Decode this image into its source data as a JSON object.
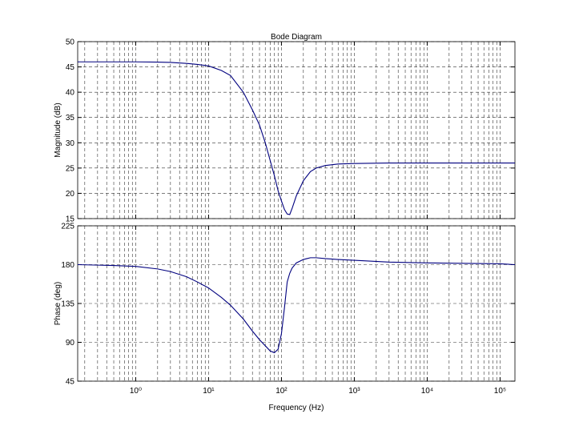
{
  "chart_data": [
    {
      "type": "line",
      "title": "Bode Diagram",
      "ylabel": "Magnitude (dB)",
      "xscale": "log",
      "grid": true,
      "minor_grid": true,
      "x": [
        0.16,
        0.5,
        1,
        2,
        3,
        5,
        7,
        10,
        15,
        20,
        30,
        40,
        50,
        60,
        70,
        80,
        90,
        100,
        110,
        120,
        130,
        140,
        160,
        200,
        250,
        300,
        400,
        600,
        1000,
        3000,
        10000,
        100000,
        160000
      ],
      "series": [
        {
          "color": "#00007f",
          "values": [
            46,
            46,
            46,
            45.95,
            45.9,
            45.7,
            45.5,
            45.2,
            44.3,
            43.3,
            40,
            36.5,
            33.5,
            30,
            26.5,
            23.5,
            20.5,
            18.5,
            16.8,
            15.9,
            15.8,
            17,
            19.5,
            22.5,
            24.3,
            25,
            25.5,
            25.8,
            25.9,
            26,
            26,
            26,
            26
          ]
        }
      ],
      "xlim": [
        0.16,
        160000
      ],
      "xticks": [
        1,
        10,
        100,
        1000,
        10000,
        100000
      ],
      "ylim": [
        15,
        50
      ],
      "yticks": [
        15,
        20,
        25,
        30,
        35,
        40,
        45,
        50
      ]
    },
    {
      "type": "line",
      "xlabel": "Frequency  (Hz)",
      "ylabel": "Phase (deg)",
      "xscale": "log",
      "grid": true,
      "minor_grid": true,
      "x": [
        0.16,
        0.5,
        1,
        2,
        3,
        5,
        7,
        10,
        15,
        20,
        30,
        40,
        50,
        60,
        70,
        80,
        90,
        100,
        110,
        120,
        130,
        140,
        160,
        200,
        250,
        300,
        400,
        600,
        1000,
        3000,
        10000,
        100000,
        160000
      ],
      "series": [
        {
          "color": "#00007f",
          "values": [
            180,
            179,
            178,
            175,
            172,
            166,
            160,
            153,
            142,
            133,
            117,
            103,
            93,
            86,
            80,
            78,
            82,
            100,
            130,
            160,
            170,
            176,
            182,
            186,
            188,
            188,
            187,
            186,
            185,
            183,
            182,
            181,
            180
          ]
        }
      ],
      "xlim": [
        0.16,
        160000
      ],
      "xticks": [
        {
          "value": 1,
          "label": "10⁰"
        },
        {
          "value": 10,
          "label": "10¹"
        },
        {
          "value": 100,
          "label": "10²"
        },
        {
          "value": 1000,
          "label": "10³"
        },
        {
          "value": 10000,
          "label": "10⁴"
        },
        {
          "value": 100000,
          "label": "10⁵"
        }
      ],
      "ylim": [
        45,
        225
      ],
      "yticks": [
        45,
        90,
        135,
        180,
        225
      ]
    }
  ]
}
